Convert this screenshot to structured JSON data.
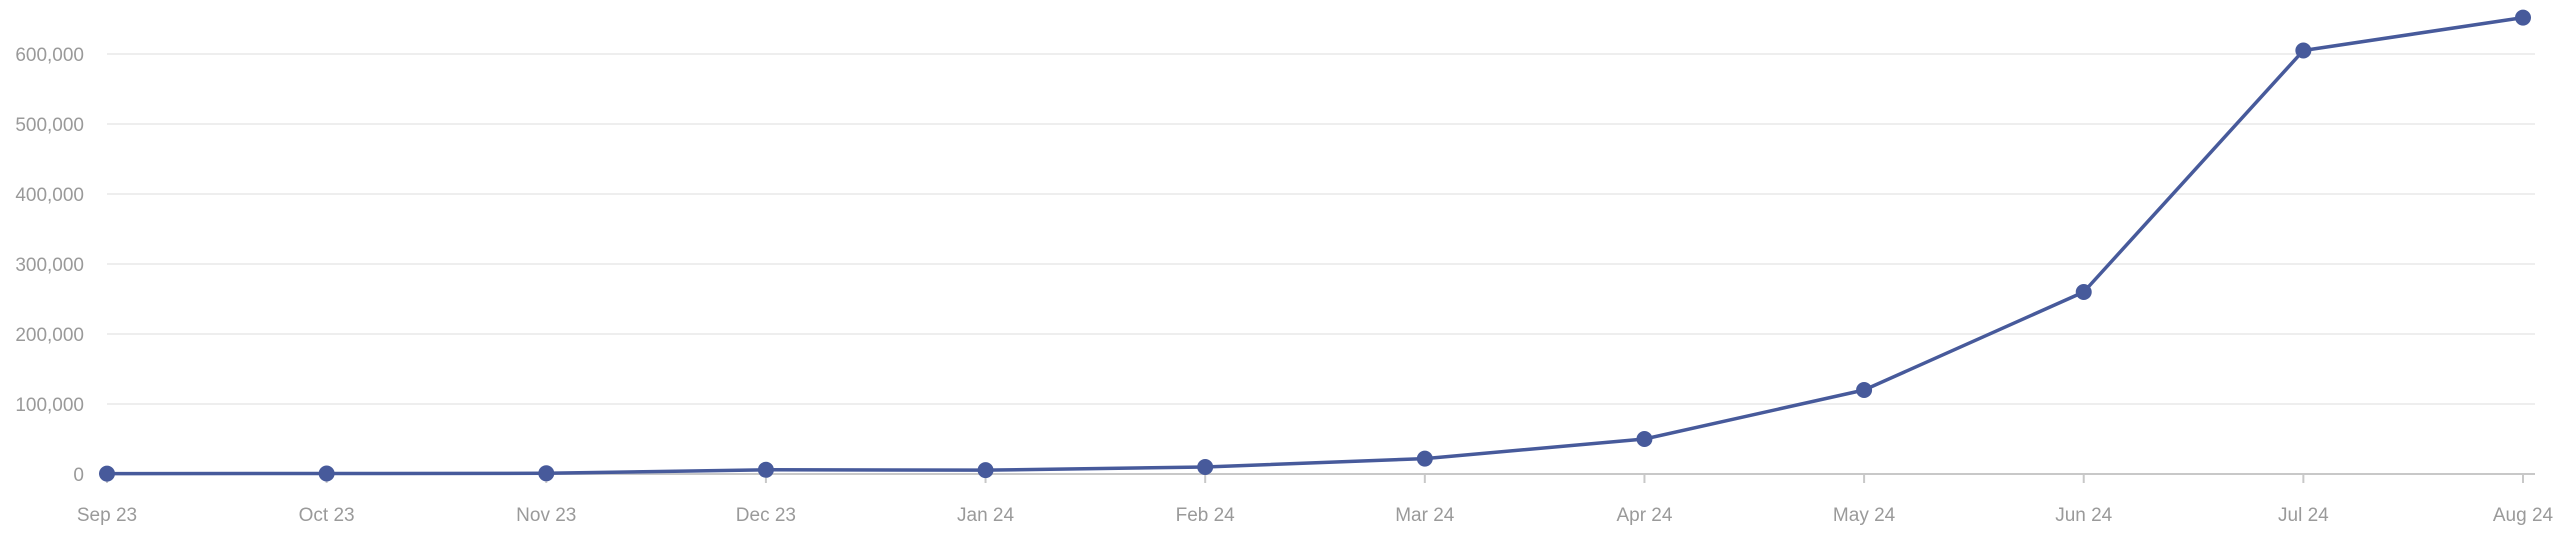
{
  "chart_data": {
    "type": "line",
    "title": "",
    "xlabel": "",
    "ylabel": "",
    "categories": [
      "Sep 23",
      "Oct 23",
      "Nov 23",
      "Dec 23",
      "Jan 24",
      "Feb 24",
      "Mar 24",
      "Apr 24",
      "May 24",
      "Jun 24",
      "Jul 24",
      "Aug 24"
    ],
    "series": [
      {
        "values": [
          500,
          700,
          1000,
          6000,
          5500,
          10000,
          22000,
          50000,
          120000,
          260000,
          605000,
          652000
        ],
        "color": "#475a9b"
      }
    ],
    "ylim": [
      0,
      660000
    ],
    "y_ticks": [
      0,
      100000,
      200000,
      300000,
      400000,
      500000,
      600000
    ],
    "y_tick_labels": [
      "0",
      "100,000",
      "200,000",
      "300,000",
      "400,000",
      "500,000",
      "600,000"
    ],
    "grid": true,
    "legend": "none"
  }
}
